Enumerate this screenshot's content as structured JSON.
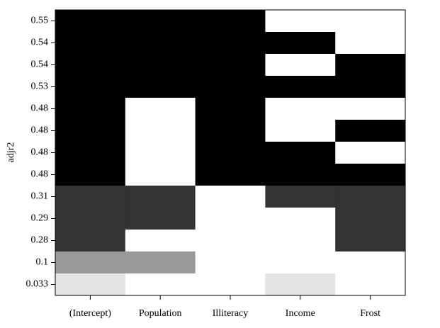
{
  "chart_data": {
    "type": "heatmap",
    "ylabel": "adjr2",
    "x_labels": [
      "(Intercept)",
      "Population",
      "Illiteracy",
      "Income",
      "Frost"
    ],
    "y_labels": [
      "0.55",
      "0.54",
      "0.54",
      "0.53",
      "0.48",
      "0.48",
      "0.48",
      "0.48",
      "0.31",
      "0.29",
      "0.28",
      "0.1",
      "0.033"
    ],
    "row_colors": [
      "#000000",
      "#000000",
      "#000000",
      "#000000",
      "#000000",
      "#000000",
      "#000000",
      "#000000",
      "#333333",
      "#333333",
      "#333333",
      "#999999",
      "#e3e3e3"
    ],
    "matrix": [
      [
        1,
        1,
        1,
        0,
        0
      ],
      [
        1,
        1,
        1,
        1,
        0
      ],
      [
        1,
        1,
        1,
        0,
        1
      ],
      [
        1,
        1,
        1,
        1,
        1
      ],
      [
        1,
        0,
        1,
        0,
        0
      ],
      [
        1,
        0,
        1,
        0,
        1
      ],
      [
        1,
        0,
        1,
        1,
        0
      ],
      [
        1,
        0,
        1,
        1,
        1
      ],
      [
        1,
        1,
        0,
        1,
        1
      ],
      [
        1,
        1,
        0,
        0,
        1
      ],
      [
        1,
        0,
        0,
        0,
        1
      ],
      [
        1,
        1,
        0,
        0,
        0
      ],
      [
        1,
        0,
        0,
        1,
        0
      ]
    ]
  }
}
